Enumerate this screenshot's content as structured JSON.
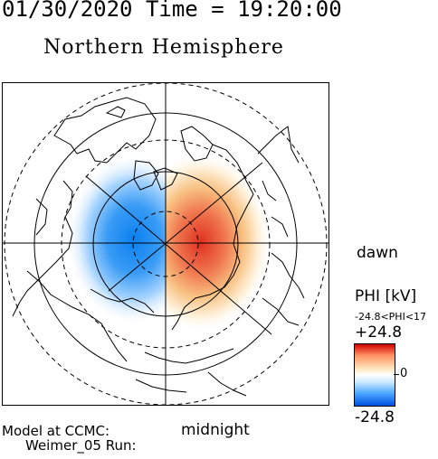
{
  "header": {
    "datetime": "01/30/2020 Time = 19:20:00",
    "title": "Northern Hemisphere"
  },
  "labels": {
    "dawn": "dawn",
    "midnight": "midnight",
    "model_line1": "Model at CCMC:",
    "model_line2": "Weimer_05 Run:"
  },
  "colorbar": {
    "quantity": "PHI [kV]",
    "range_text": "-24.8<PHI<17",
    "max_label": "+24.8",
    "zero_label": "0",
    "min_label": "-24.8",
    "colors": {
      "max": "#d00000",
      "zero": "#ffffff",
      "min": "#0050e0"
    }
  },
  "map": {
    "potential_kv": {
      "max": 17,
      "min": -24.8
    }
  }
}
